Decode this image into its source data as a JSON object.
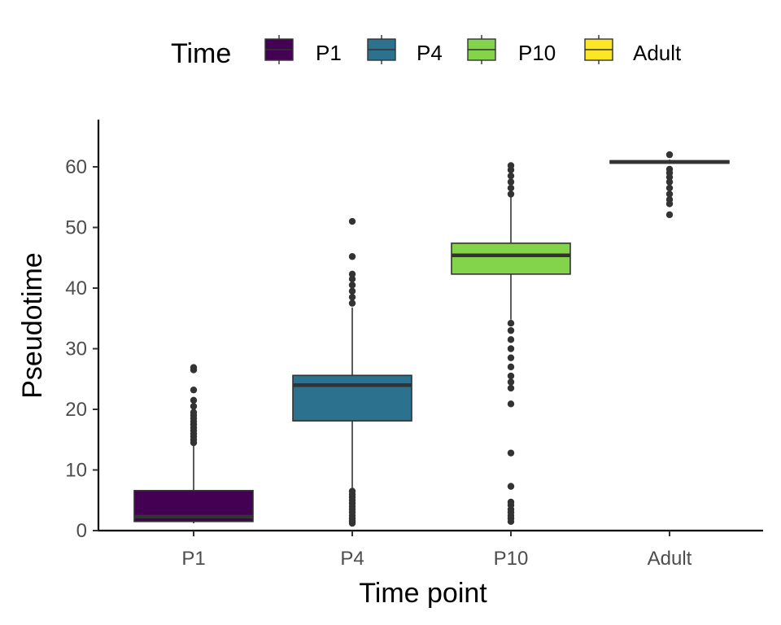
{
  "chart_data": {
    "type": "boxplot",
    "xlabel": "Time point",
    "ylabel": "Pseudotime",
    "ylim": [
      0,
      68
    ],
    "yticks": [
      0,
      10,
      20,
      30,
      40,
      50,
      60
    ],
    "categories": [
      "P1",
      "P4",
      "P10",
      "Adult"
    ],
    "legend": {
      "title": "Time",
      "position": "top",
      "entries": [
        "P1",
        "P4",
        "P10",
        "Adult"
      ]
    },
    "colors": [
      "#440154",
      "#2c718e",
      "#84d44b",
      "#fde725"
    ],
    "median_color": "#333333",
    "outlier_color": "#333333",
    "grid": false,
    "boxes": [
      {
        "category": "P1",
        "whisker_low": 1.2,
        "q1": 1.5,
        "median": 2.3,
        "q3": 6.6,
        "whisker_high": 14.2,
        "outliers": [
          14.5,
          15.0,
          15.5,
          16.0,
          16.5,
          17.0,
          17.5,
          18.0,
          18.5,
          19.0,
          19.5,
          20.5,
          21.5,
          23.2,
          26.5,
          26.9
        ]
      },
      {
        "category": "P4",
        "whisker_low": 7.0,
        "q1": 18.1,
        "median": 24.0,
        "q3": 25.6,
        "whisker_high": 36.8,
        "outliers": [
          1.2,
          1.6,
          2.0,
          2.5,
          3.0,
          3.5,
          4.0,
          4.5,
          5.0,
          5.5,
          6.0,
          6.5,
          37.5,
          38.5,
          39.5,
          40.5,
          41.5,
          42.3,
          45.2,
          51.0
        ]
      },
      {
        "category": "P10",
        "whisker_low": 34.8,
        "q1": 42.3,
        "median": 45.4,
        "q3": 47.4,
        "whisker_high": 55.0,
        "outliers": [
          1.5,
          2.0,
          2.5,
          3.0,
          3.5,
          4.2,
          4.7,
          7.3,
          12.8,
          20.9,
          23.5,
          24.5,
          25.5,
          27.0,
          28.5,
          30.0,
          31.5,
          33.0,
          34.2,
          55.5,
          56.5,
          57.5,
          58.5,
          59.5,
          60.2
        ]
      },
      {
        "category": "Adult",
        "whisker_low": 60.5,
        "q1": 60.6,
        "median": 60.8,
        "q3": 61.0,
        "whisker_high": 61.2,
        "outliers": [
          52.1,
          53.9,
          54.6,
          55.5,
          56.5,
          57.5,
          58.3,
          59.0,
          59.6,
          62.0
        ]
      }
    ]
  }
}
